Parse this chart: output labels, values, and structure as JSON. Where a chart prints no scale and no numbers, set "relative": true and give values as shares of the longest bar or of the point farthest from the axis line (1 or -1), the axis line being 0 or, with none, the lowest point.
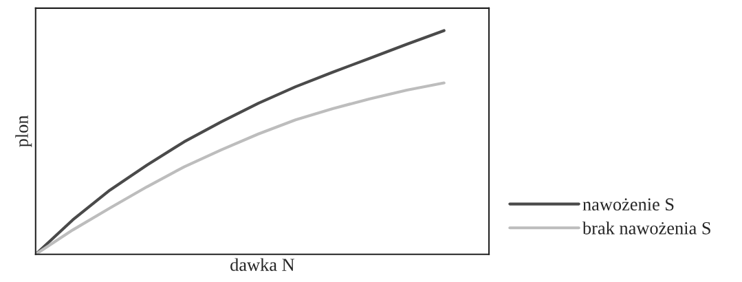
{
  "chart_data": {
    "type": "line",
    "relative": true,
    "xlabel": "dawka N",
    "ylabel": "plon",
    "categories": [
      null,
      null,
      null,
      null,
      null,
      null,
      null,
      null,
      null,
      null,
      null,
      null
    ],
    "series": [
      {
        "name": "nawożenie S",
        "color": "#4a4a4a",
        "values": [
          0,
          0.154,
          0.287,
          0.399,
          0.503,
          0.592,
          0.675,
          0.749,
          0.814,
          0.876,
          0.939,
          1
        ]
      },
      {
        "name": "brak nawożenia S",
        "color": "#bdbdbd",
        "values": [
          0,
          0.109,
          0.207,
          0.302,
          0.391,
          0.467,
          0.538,
          0.601,
          0.651,
          0.695,
          0.734,
          0.766
        ]
      }
    ],
    "legend": "bottom right",
    "marker": "none",
    "line_style": "solid"
  }
}
